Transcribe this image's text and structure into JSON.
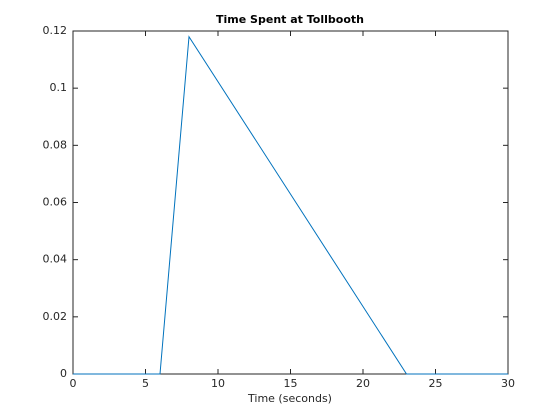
{
  "chart_data": {
    "type": "line",
    "title": "Time Spent at Tollbooth",
    "x_label": "Time (seconds)",
    "x": [
      0,
      6,
      8,
      23,
      30
    ],
    "values": [
      0,
      0,
      0.118,
      0,
      0
    ],
    "color": "#0072bd",
    "xlim": [
      0,
      30
    ],
    "xticks": [
      0,
      5,
      10,
      15,
      20,
      25,
      30
    ],
    "ylim": [
      0,
      0.12
    ],
    "yticks": [
      0,
      0.02,
      0.04,
      0.06,
      0.08,
      0.1,
      0.12
    ],
    "grid": false
  }
}
